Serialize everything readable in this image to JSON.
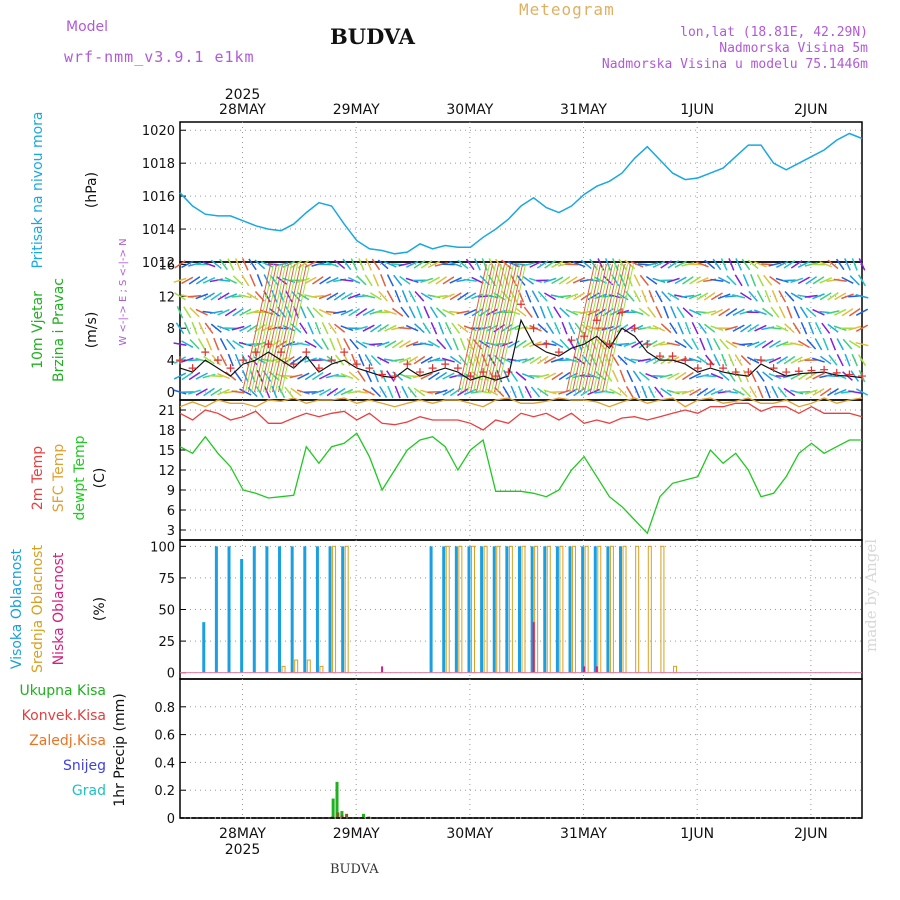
{
  "header": {
    "model_label": "Model",
    "model_name": "wrf-nmm_v3.9.1 e1km",
    "station": "BUDVA",
    "product": "Meteogram",
    "coords": "lon,lat (18.81E, 42.29N)",
    "elevation": "Nadmorska Visina 5m",
    "model_elevation": "Nadmorska Visina u modelu 75.1446m"
  },
  "footer": {
    "station": "BUDVA",
    "credit": "made by Angel"
  },
  "colors": {
    "pressure": "#1aa8e0",
    "temp2m": "#e84040",
    "sfc_temp": "#e0a030",
    "dewpoint": "#22c822",
    "high_cloud": "#1aa0e0",
    "mid_cloud": "#d8a020",
    "low_cloud": "#d02080",
    "total_precip": "#20b020",
    "conv_precip": "#e04040",
    "freezing": "#f07020",
    "snow": "#4040e0",
    "hail": "#20c0c0",
    "wind_speed": "#111111",
    "gust": "#e03030"
  },
  "chart_data": [
    {
      "type": "line",
      "panel": "pressure",
      "ylabel_left": "Pritisak na nivou mora",
      "ylabel_unit": "(hPa)",
      "year": "2025",
      "xticks": [
        "28MAY",
        "29MAY",
        "30MAY",
        "31MAY",
        "1JUN",
        "2JUN"
      ],
      "ylim": [
        1012,
        1020.5
      ],
      "yticks": [
        "1012",
        "1014",
        "1016",
        "1018",
        "1020"
      ],
      "grid": true,
      "series": [
        {
          "values": [
            1016.2,
            1015.4,
            1014.9,
            1014.8,
            1014.8,
            1014.5,
            1014.2,
            1014.0,
            1013.9,
            1014.3,
            1015.0,
            1015.6,
            1015.4,
            1014.3,
            1013.3,
            1012.8,
            1012.7,
            1012.5,
            1012.6,
            1013.1,
            1012.8,
            1013.0,
            1012.9,
            1012.9,
            1013.5,
            1014.0,
            1014.6,
            1015.4,
            1015.9,
            1015.3,
            1015.0,
            1015.4,
            1016.1,
            1016.6,
            1016.9,
            1017.4,
            1018.3,
            1019.0,
            1018.2,
            1017.4,
            1017.0,
            1017.1,
            1017.4,
            1017.7,
            1018.4,
            1019.1,
            1019.1,
            1018.0,
            1017.6,
            1018.0,
            1018.4,
            1018.8,
            1019.4,
            1019.8,
            1019.5
          ]
        }
      ]
    },
    {
      "type": "scatter",
      "panel": "wind",
      "ylabel_left": [
        "10m Vjetar",
        "Brzina i Pravac"
      ],
      "ylabel_unit": "(m/s)",
      "compass": "W <-|-> E ; S <-|-> N",
      "ylim": [
        -1,
        16.3
      ],
      "yticks": [
        "0",
        "4",
        "8",
        "12",
        "16"
      ],
      "grid": true,
      "series": [
        {
          "name": "speed",
          "values": [
            3,
            2.5,
            4,
            3,
            2,
            3.5,
            4,
            5,
            4,
            3,
            4.5,
            2.5,
            3.5,
            4,
            3,
            2.5,
            2,
            1.8,
            3,
            2,
            2.5,
            3,
            2.5,
            1.5,
            2,
            1.5,
            2,
            9,
            6,
            5,
            4.5,
            5.5,
            6,
            7,
            5.5,
            8,
            7,
            5,
            4,
            4,
            3.5,
            2.5,
            3,
            2.5,
            2.2,
            2,
            3.5,
            2.7,
            2,
            2.3,
            2.4,
            2.5,
            2.1,
            2,
            1.8
          ]
        },
        {
          "name": "gust",
          "values": [
            4,
            3,
            5,
            4,
            3,
            4,
            5,
            6,
            5,
            3.5,
            5,
            3,
            4,
            5,
            3.5,
            3,
            2.2,
            2,
            3.5,
            2.5,
            3,
            3.5,
            3,
            2,
            2.5,
            2,
            2.5,
            11,
            8,
            6,
            5,
            6.5,
            7,
            9,
            6,
            10,
            8,
            6,
            4.5,
            4.5,
            4,
            3,
            3.5,
            3,
            2.5,
            2.5,
            4,
            3,
            2.5,
            2.6,
            2.7,
            2.8,
            2.4,
            2.2,
            2
          ]
        }
      ]
    },
    {
      "type": "line",
      "panel": "temperature",
      "ylabel_left": [
        "2m Temp",
        "SFC Temp",
        "dewpt Temp"
      ],
      "ylabel_unit": "(C)",
      "ylim": [
        1.5,
        22.5
      ],
      "yticks": [
        "3",
        "6",
        "9",
        "12",
        "15",
        "18",
        "21"
      ],
      "grid": true,
      "series": [
        {
          "name": "2m Temp",
          "values": [
            20.5,
            19.5,
            21.0,
            20.5,
            19.5,
            20.0,
            20.8,
            19.0,
            19.0,
            19.8,
            20.5,
            20.0,
            20.5,
            20.8,
            19.5,
            20.5,
            19.0,
            18.8,
            19.2,
            20.0,
            19.5,
            19.5,
            19.5,
            19.0,
            18.0,
            19.5,
            19.0,
            20.5,
            20.0,
            20.5,
            19.5,
            20.5,
            19.0,
            19.5,
            19.0,
            19.8,
            20.0,
            19.5,
            20.0,
            20.5,
            21.0,
            20.5,
            21.5,
            21.5,
            22.0,
            22.0,
            20.8,
            21.5,
            21.5,
            20.5,
            21.5,
            20.5,
            20.5,
            20.5,
            20.0
          ]
        },
        {
          "name": "SFC Temp",
          "values": [
            21.5,
            22.2,
            21.5,
            22.5,
            22.0,
            22.0,
            21.5,
            22.5,
            22.3,
            22.8,
            22.0,
            22.5,
            22.5,
            22.8,
            22.0,
            22.5,
            22.0,
            21.5,
            22.0,
            22.5,
            22.0,
            22.5,
            22.5,
            22.0,
            21.5,
            22.5,
            22.8,
            22.0,
            22.0,
            22.3,
            22.8,
            22.5,
            22.5,
            22.2,
            21.5,
            22.2,
            22.8,
            22.0,
            22.5,
            22.8,
            21.5,
            22.5,
            22.8,
            22.0,
            22.3,
            22.8,
            22.0,
            22.0,
            22.5,
            21.5,
            22.0,
            22.8,
            22.0,
            22.5,
            22.8
          ]
        },
        {
          "name": "dewpt Temp",
          "values": [
            15.5,
            14.5,
            17.0,
            14.5,
            12.5,
            9.0,
            8.5,
            7.8,
            8.0,
            8.2,
            15.5,
            13.0,
            15.5,
            16.0,
            17.5,
            14.0,
            9.0,
            12.0,
            15.0,
            16.5,
            17.0,
            15.5,
            12.0,
            15.0,
            16.5,
            8.8,
            8.8,
            8.8,
            8.5,
            8.0,
            9.0,
            12.0,
            14.0,
            11.0,
            8.0,
            6.5,
            4.5,
            2.5,
            8.0,
            10.0,
            10.5,
            11.0,
            15.0,
            13.0,
            14.5,
            12.0,
            8.0,
            8.5,
            11.0,
            14.5,
            16.0,
            14.5,
            15.5,
            16.5,
            16.5
          ]
        }
      ]
    },
    {
      "type": "bar",
      "panel": "cloud",
      "ylabel_left": [
        "Visoka Oblacnost",
        "Srednja Oblacnost",
        "Niska Oblacnost"
      ],
      "ylabel_unit": "(%)",
      "ylim": [
        -5,
        105
      ],
      "yticks": [
        "0",
        "25",
        "50",
        "75",
        "100"
      ],
      "grid": true,
      "series": [
        {
          "name": "Visoka Oblacnost",
          "values": [
            0,
            0,
            40,
            100,
            100,
            90,
            100,
            100,
            100,
            100,
            100,
            100,
            100,
            100,
            0,
            0,
            0,
            0,
            0,
            0,
            100,
            100,
            100,
            100,
            100,
            100,
            100,
            100,
            100,
            100,
            100,
            100,
            100,
            100,
            100,
            100,
            0,
            0,
            0,
            0,
            0,
            0,
            0,
            0,
            0,
            0,
            0,
            0,
            0,
            0,
            0,
            0,
            0,
            0,
            0
          ]
        },
        {
          "name": "Srednja Oblacnost",
          "values": [
            0,
            0,
            0,
            0,
            0,
            0,
            0,
            0,
            5,
            10,
            10,
            5,
            100,
            100,
            0,
            0,
            0,
            0,
            0,
            0,
            0,
            100,
            100,
            100,
            100,
            100,
            100,
            100,
            100,
            100,
            100,
            100,
            100,
            100,
            100,
            100,
            100,
            100,
            100,
            5,
            0,
            0,
            0,
            0,
            0,
            0,
            0,
            0,
            0,
            0,
            0,
            0,
            0,
            0,
            0
          ]
        },
        {
          "name": "Niska Oblacnost",
          "values": [
            0,
            0,
            0,
            0,
            0,
            0,
            0,
            0,
            0,
            0,
            0,
            0,
            0,
            0,
            0,
            0,
            5,
            0,
            0,
            0,
            0,
            0,
            0,
            0,
            0,
            0,
            0,
            0,
            40,
            0,
            0,
            0,
            5,
            5,
            0,
            0,
            0,
            0,
            0,
            0,
            0,
            0,
            0,
            0,
            0,
            0,
            0,
            0,
            0,
            0,
            0,
            0,
            0,
            0,
            0
          ]
        }
      ]
    },
    {
      "type": "bar",
      "panel": "precip",
      "ylabel_left": [
        "Ukupna Kisa",
        "Konvek.Kisa",
        "Zaledj.Kisa",
        "Snijeg",
        "Grad"
      ],
      "ylabel_unit": "1hr Precip (mm)",
      "ylim": [
        0,
        1.0
      ],
      "yticks": [
        "0",
        "0.2",
        "0.4",
        "0.6",
        "0.8"
      ],
      "grid": true,
      "series": [
        {
          "name": "Ukupna Kisa",
          "bars": [
            [
              1.793,
              0.14
            ],
            [
              1.827,
              0.26
            ],
            [
              1.87,
              0.05
            ],
            [
              2.06,
              0.03
            ]
          ]
        },
        {
          "name": "Zaledj.Kisa",
          "bars": [
            [
              1.76,
              0.01
            ],
            [
              1.808,
              0.04
            ],
            [
              1.845,
              0.02
            ],
            [
              1.885,
              0.03
            ],
            [
              2.08,
              0.01
            ]
          ]
        }
      ]
    }
  ]
}
